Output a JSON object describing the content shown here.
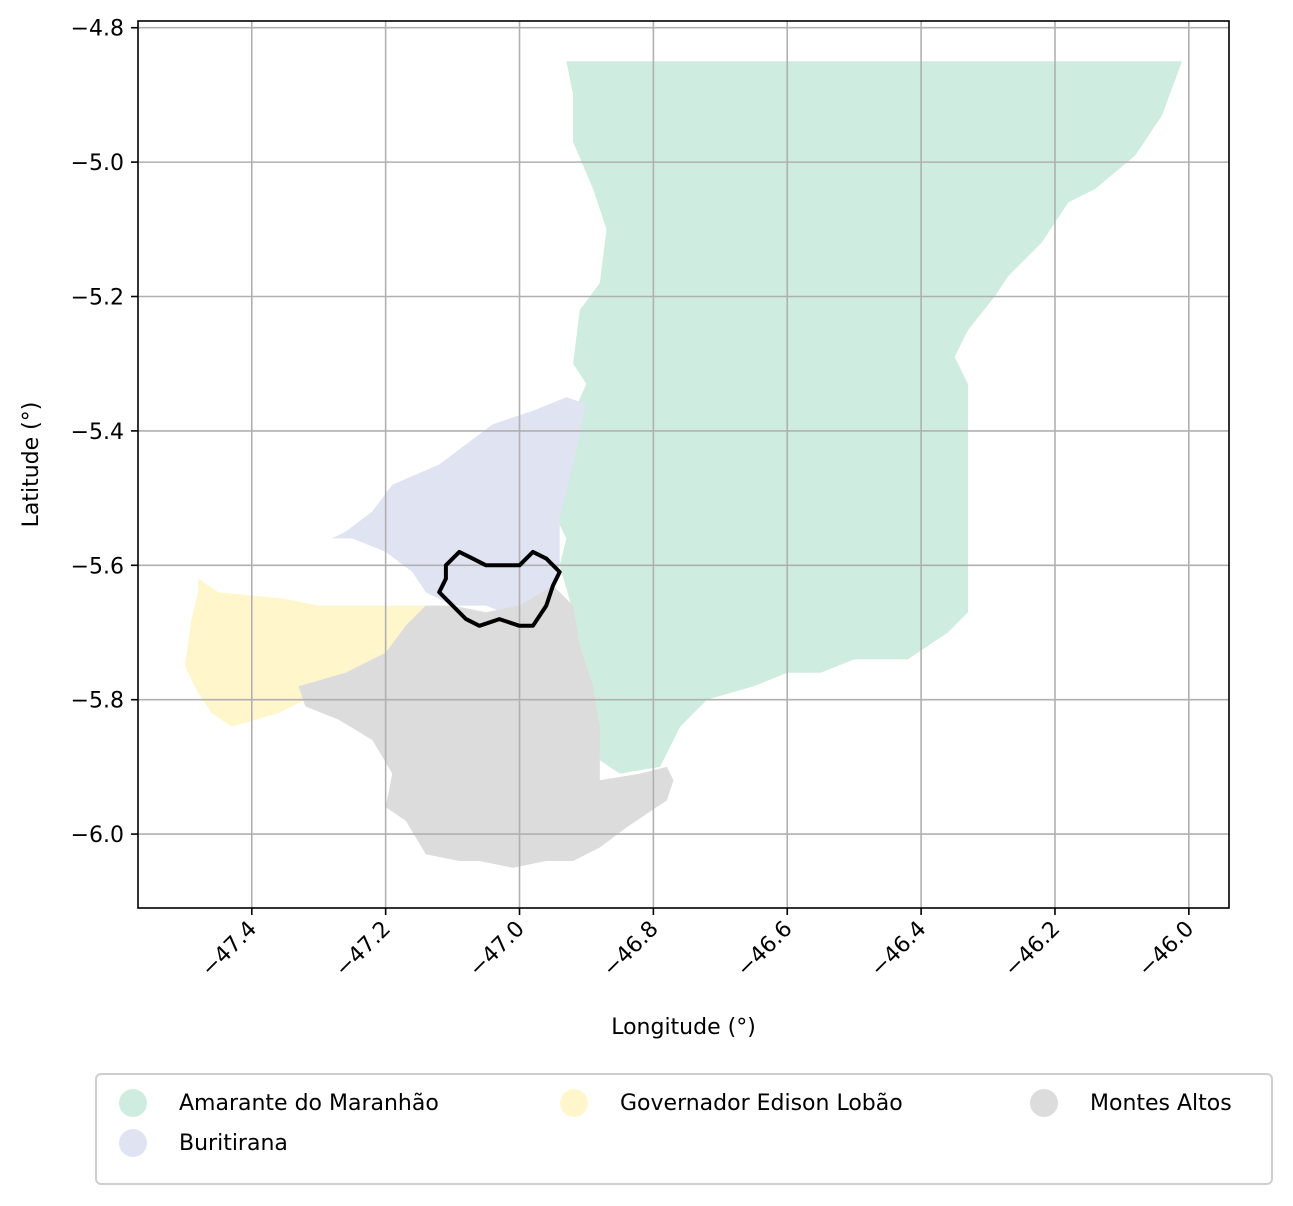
{
  "chart_data": {
    "type": "map",
    "xlabel": "Longitude (°)",
    "ylabel": "Latitude (°)",
    "xlim": [
      -47.57,
      -45.94
    ],
    "ylim": [
      -6.11,
      -4.79
    ],
    "x_ticks": [
      -47.4,
      -47.2,
      -47.0,
      -46.8,
      -46.6,
      -46.4,
      -46.2,
      -46.0
    ],
    "y_ticks": [
      -4.8,
      -5.0,
      -5.2,
      -5.4,
      -5.6,
      -5.8,
      -6.0
    ],
    "x_tick_labels": [
      "−47.4",
      "−47.2",
      "−47.0",
      "−46.8",
      "−46.6",
      "−46.4",
      "−46.2",
      "−46.0"
    ],
    "y_tick_labels": [
      "−4.8",
      "−5.0",
      "−5.2",
      "−5.4",
      "−5.6",
      "−5.8",
      "−6.0"
    ],
    "grid": true,
    "legend_position": "bottom",
    "regions": [
      {
        "name": "Amarante do Maranhão",
        "color": "#cfece0",
        "polygon": [
          [
            -46.93,
            -4.85
          ],
          [
            -46.01,
            -4.85
          ],
          [
            -46.04,
            -4.93
          ],
          [
            -46.08,
            -4.99
          ],
          [
            -46.14,
            -5.04
          ],
          [
            -46.18,
            -5.06
          ],
          [
            -46.22,
            -5.12
          ],
          [
            -46.27,
            -5.17
          ],
          [
            -46.29,
            -5.2
          ],
          [
            -46.33,
            -5.25
          ],
          [
            -46.35,
            -5.29
          ],
          [
            -46.33,
            -5.33
          ],
          [
            -46.33,
            -5.67
          ],
          [
            -46.36,
            -5.7
          ],
          [
            -46.42,
            -5.74
          ],
          [
            -46.5,
            -5.74
          ],
          [
            -46.55,
            -5.76
          ],
          [
            -46.6,
            -5.76
          ],
          [
            -46.65,
            -5.78
          ],
          [
            -46.72,
            -5.8
          ],
          [
            -46.76,
            -5.84
          ],
          [
            -46.79,
            -5.9
          ],
          [
            -46.85,
            -5.91
          ],
          [
            -46.88,
            -5.89
          ],
          [
            -46.89,
            -5.8
          ],
          [
            -46.91,
            -5.74
          ],
          [
            -46.92,
            -5.67
          ],
          [
            -46.94,
            -5.6
          ],
          [
            -46.93,
            -5.56
          ],
          [
            -46.96,
            -5.5
          ],
          [
            -46.94,
            -5.42
          ],
          [
            -46.9,
            -5.33
          ],
          [
            -46.92,
            -5.3
          ],
          [
            -46.91,
            -5.22
          ],
          [
            -46.88,
            -5.18
          ],
          [
            -46.87,
            -5.1
          ],
          [
            -46.89,
            -5.04
          ],
          [
            -46.92,
            -4.97
          ],
          [
            -46.92,
            -4.9
          ]
        ]
      },
      {
        "name": "Buritirana",
        "color": "#dfe3f2",
        "polygon": [
          [
            -46.9,
            -5.36
          ],
          [
            -46.93,
            -5.35
          ],
          [
            -46.98,
            -5.37
          ],
          [
            -47.04,
            -5.39
          ],
          [
            -47.12,
            -5.45
          ],
          [
            -47.19,
            -5.48
          ],
          [
            -47.22,
            -5.52
          ],
          [
            -47.26,
            -5.55
          ],
          [
            -47.28,
            -5.56
          ],
          [
            -47.25,
            -5.56
          ],
          [
            -47.2,
            -5.58
          ],
          [
            -47.16,
            -5.61
          ],
          [
            -47.14,
            -5.64
          ],
          [
            -47.1,
            -5.66
          ],
          [
            -47.05,
            -5.66
          ],
          [
            -47.0,
            -5.68
          ],
          [
            -46.97,
            -5.65
          ],
          [
            -46.95,
            -5.63
          ],
          [
            -46.94,
            -5.6
          ],
          [
            -46.94,
            -5.53
          ],
          [
            -46.92,
            -5.45
          ]
        ]
      },
      {
        "name": "Governador Edison Lobão",
        "color": "#fff6cc",
        "polygon": [
          [
            -47.48,
            -5.62
          ],
          [
            -47.45,
            -5.64
          ],
          [
            -47.35,
            -5.65
          ],
          [
            -47.3,
            -5.66
          ],
          [
            -47.1,
            -5.66
          ],
          [
            -47.12,
            -5.71
          ],
          [
            -47.15,
            -5.74
          ],
          [
            -47.2,
            -5.76
          ],
          [
            -47.26,
            -5.78
          ],
          [
            -47.3,
            -5.79
          ],
          [
            -47.32,
            -5.8
          ],
          [
            -47.36,
            -5.82
          ],
          [
            -47.43,
            -5.84
          ],
          [
            -47.46,
            -5.82
          ],
          [
            -47.48,
            -5.79
          ],
          [
            -47.5,
            -5.75
          ],
          [
            -47.49,
            -5.68
          ],
          [
            -47.48,
            -5.64
          ]
        ]
      },
      {
        "name": "Montes Altos",
        "color": "#dcdcdc",
        "polygon": [
          [
            -47.14,
            -5.66
          ],
          [
            -47.1,
            -5.66
          ],
          [
            -47.05,
            -5.67
          ],
          [
            -47.0,
            -5.66
          ],
          [
            -46.95,
            -5.63
          ],
          [
            -46.92,
            -5.66
          ],
          [
            -46.91,
            -5.72
          ],
          [
            -46.89,
            -5.78
          ],
          [
            -46.88,
            -5.84
          ],
          [
            -46.88,
            -5.92
          ],
          [
            -46.82,
            -5.91
          ],
          [
            -46.78,
            -5.9
          ],
          [
            -46.77,
            -5.92
          ],
          [
            -46.78,
            -5.95
          ],
          [
            -46.81,
            -5.97
          ],
          [
            -46.84,
            -5.99
          ],
          [
            -46.88,
            -6.02
          ],
          [
            -46.92,
            -6.04
          ],
          [
            -46.96,
            -6.04
          ],
          [
            -47.01,
            -6.05
          ],
          [
            -47.06,
            -6.04
          ],
          [
            -47.09,
            -6.04
          ],
          [
            -47.14,
            -6.03
          ],
          [
            -47.17,
            -5.98
          ],
          [
            -47.2,
            -5.96
          ],
          [
            -47.19,
            -5.91
          ],
          [
            -47.22,
            -5.86
          ],
          [
            -47.27,
            -5.83
          ],
          [
            -47.32,
            -5.81
          ],
          [
            -47.33,
            -5.78
          ],
          [
            -47.26,
            -5.76
          ],
          [
            -47.2,
            -5.73
          ],
          [
            -47.17,
            -5.69
          ]
        ]
      }
    ],
    "highlight_outline": {
      "color": "#000000",
      "polygon": [
        [
          -47.11,
          -5.6
        ],
        [
          -47.09,
          -5.58
        ],
        [
          -47.07,
          -5.59
        ],
        [
          -47.05,
          -5.6
        ],
        [
          -47.0,
          -5.6
        ],
        [
          -46.98,
          -5.58
        ],
        [
          -46.96,
          -5.59
        ],
        [
          -46.94,
          -5.61
        ],
        [
          -46.95,
          -5.63
        ],
        [
          -46.96,
          -5.66
        ],
        [
          -46.98,
          -5.69
        ],
        [
          -47.0,
          -5.69
        ],
        [
          -47.03,
          -5.68
        ],
        [
          -47.06,
          -5.69
        ],
        [
          -47.08,
          -5.68
        ],
        [
          -47.1,
          -5.66
        ],
        [
          -47.12,
          -5.64
        ],
        [
          -47.11,
          -5.62
        ]
      ]
    }
  },
  "legend": {
    "items": [
      {
        "label": "Amarante do Maranhão",
        "color": "#cfece0"
      },
      {
        "label": "Buritirana",
        "color": "#dfe3f2"
      },
      {
        "label": "Governador Edison Lobão",
        "color": "#fff6cc"
      },
      {
        "label": "Montes Altos",
        "color": "#dcdcdc"
      }
    ]
  }
}
